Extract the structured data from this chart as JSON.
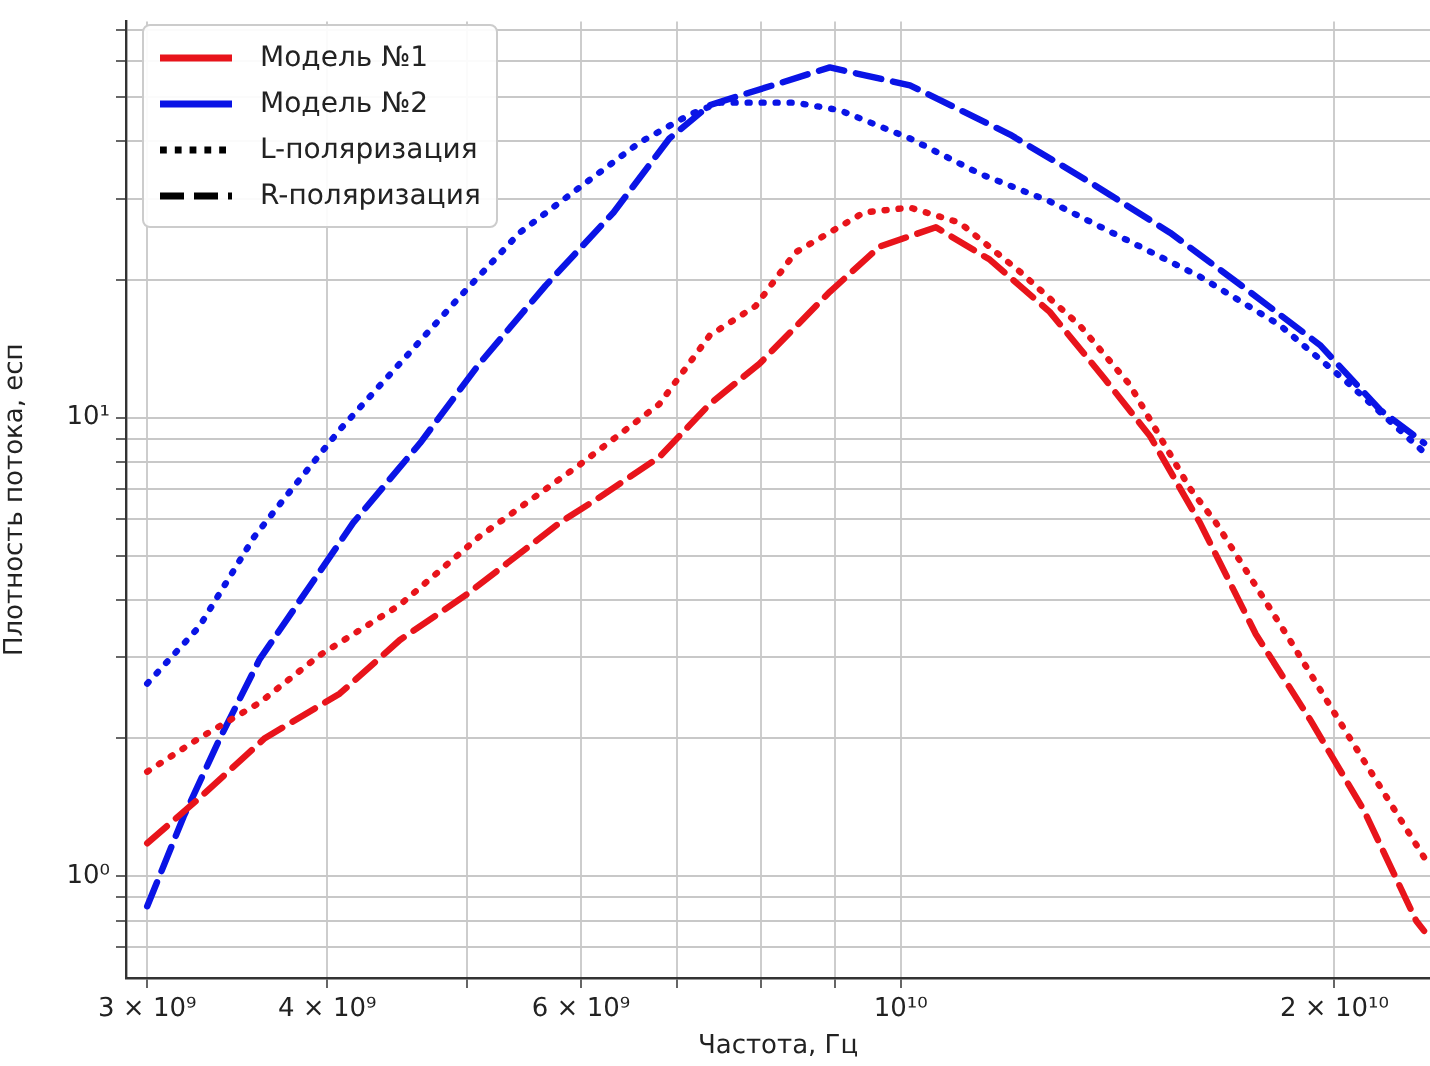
{
  "chart_data": {
    "type": "line",
    "xlabel": "Частота, Гц",
    "ylabel": "Плотность потока, есп",
    "log": "xy",
    "grid": true,
    "marker": "none",
    "xlim": [
      2900000000.0,
      23300000000.0
    ],
    "xticks": [
      {
        "value": 3000000000.0,
        "label": "3 × 10⁹"
      },
      {
        "value": 4000000000.0,
        "label": "4 × 10⁹"
      },
      {
        "value": 5000000000.0,
        "label": null
      },
      {
        "value": 6000000000.0,
        "label": "6 × 10⁹"
      },
      {
        "value": 7000000000.0,
        "label": null
      },
      {
        "value": 8000000000.0,
        "label": null
      },
      {
        "value": 9000000000.0,
        "label": null
      },
      {
        "value": 10000000000.0,
        "label": "10¹⁰"
      },
      {
        "value": 20000000000.0,
        "label": "2 × 10¹⁰"
      }
    ],
    "ylim": [
      0.62,
      73
    ],
    "yticks": [
      {
        "value": 0.7,
        "label": null
      },
      {
        "value": 0.8,
        "label": null
      },
      {
        "value": 0.9,
        "label": null
      },
      {
        "value": 1,
        "label": "10⁰"
      },
      {
        "value": 2,
        "label": null
      },
      {
        "value": 3,
        "label": null
      },
      {
        "value": 4,
        "label": null
      },
      {
        "value": 5,
        "label": null
      },
      {
        "value": 6,
        "label": null
      },
      {
        "value": 7,
        "label": null
      },
      {
        "value": 8,
        "label": null
      },
      {
        "value": 9,
        "label": null
      },
      {
        "value": 10,
        "label": "10¹"
      },
      {
        "value": 20,
        "label": null
      },
      {
        "value": 30,
        "label": null
      },
      {
        "value": 40,
        "label": null
      },
      {
        "value": 50,
        "label": null
      },
      {
        "value": 60,
        "label": null
      },
      {
        "value": 70,
        "label": null
      }
    ],
    "annotations": [
      "Модель №1",
      "Модель №2",
      "L-поляризация",
      "R-поляризация"
    ],
    "series": [
      {
        "color": "#e8141b",
        "line_style": "dotted",
        "x": [
          3000000000.0,
          3260000000.0,
          3590000000.0,
          3950000000.0,
          4490000000.0,
          5100000000.0,
          5990000000.0,
          6800000000.0,
          7370000000.0,
          7930000000.0,
          8450000000.0,
          9430000000.0,
          10150000000.0,
          10990000000.0,
          12100000000.0,
          13310000000.0,
          14420000000.0,
          15880000000.0,
          16550000000.0,
          18630000000.0,
          20500000000.0,
          23080000000.0
        ],
        "values": [
          1.69,
          2.0,
          2.39,
          3.03,
          3.9,
          5.5,
          7.9,
          10.7,
          15.1,
          17.5,
          22.9,
          28,
          28.7,
          26.6,
          20.8,
          15.9,
          11.8,
          7.0,
          5.9,
          3.27,
          2.0,
          1.1
        ]
      },
      {
        "color": "#e8141b",
        "line_style": "dashed",
        "x": [
          3000000000.0,
          3260000000.0,
          3620000000.0,
          4080000000.0,
          4490000000.0,
          4990000000.0,
          5800000000.0,
          6180000000.0,
          6800000000.0,
          7370000000.0,
          7980000000.0,
          8930000000.0,
          9670000000.0,
          10580000000.0,
          11530000000.0,
          12690000000.0,
          13840000000.0,
          14900000000.0,
          16130000000.0,
          17640000000.0,
          19230000000.0,
          20970000000.0,
          22790000000.0,
          23080000000.0
        ],
        "values": [
          1.18,
          1.48,
          2.0,
          2.5,
          3.27,
          4.1,
          5.9,
          6.7,
          8.2,
          10.7,
          13.1,
          18.8,
          23.6,
          26,
          22.1,
          17,
          12.2,
          9.1,
          5.9,
          3.37,
          2.2,
          1.39,
          0.8,
          0.76
        ]
      },
      {
        "color": "#0a14e6",
        "line_style": "dotted",
        "x": [
          3000000000.0,
          3260000000.0,
          3560000000.0,
          3740000000.0,
          4080000000.0,
          4490000000.0,
          4940000000.0,
          5440000000.0,
          5990000000.0,
          6590000000.0,
          7140000000.0,
          7490000000.0,
          8450000000.0,
          9070000000.0,
          10150000000.0,
          11350000000.0,
          12690000000.0,
          14200000000.0,
          16130000000.0,
          18330000000.0,
          20500000000.0,
          23080000000.0
        ],
        "values": [
          2.63,
          3.5,
          5.5,
          6.7,
          9.4,
          13.1,
          18.3,
          25.3,
          31.8,
          39.8,
          45.8,
          48.6,
          48.6,
          46.8,
          40.6,
          34,
          29.6,
          24.8,
          20.3,
          15.9,
          11.8,
          8.4
        ]
      },
      {
        "color": "#0a14e6",
        "line_style": "dashed",
        "x": [
          3000000000.0,
          3180000000.0,
          3370000000.0,
          3590000000.0,
          4170000000.0,
          4640000000.0,
          5100000000.0,
          5670000000.0,
          6320000000.0,
          6910000000.0,
          7370000000.0,
          8930000000.0,
          10150000000.0,
          11910000000.0,
          13530000000.0,
          15380000000.0,
          17470000000.0,
          19540000000.0,
          21510000000.0,
          23080000000.0
        ],
        "values": [
          0.86,
          1.35,
          2.0,
          2.97,
          5.9,
          8.8,
          13.1,
          19.4,
          28,
          40.6,
          48,
          58,
          53,
          41.4,
          32.6,
          25.3,
          18.8,
          14.4,
          10.4,
          8.8
        ]
      }
    ]
  }
}
